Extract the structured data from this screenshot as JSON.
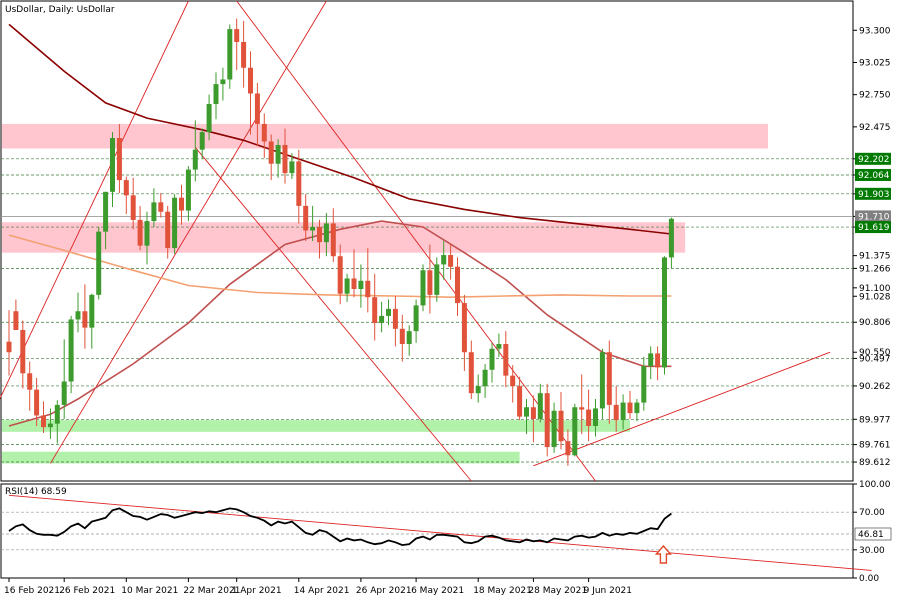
{
  "chart_data": [
    {
      "type": "candlestick",
      "title": "UsDollar, Daily:  UsDollar",
      "ylim": [
        89.45,
        93.55
      ],
      "y_ticks": [
        "93.300",
        "93.025",
        "92.750",
        "92.475",
        "92.202",
        "92.064",
        "91.903",
        "91.710",
        "91.619",
        "91.375",
        "91.266",
        "91.100",
        "91.028",
        "90.806",
        "90.550",
        "90.497",
        "90.262",
        "89.977",
        "89.761",
        "89.612"
      ],
      "y_tick_values": [
        93.3,
        93.025,
        92.75,
        92.475,
        92.202,
        92.064,
        91.903,
        91.71,
        91.619,
        91.375,
        91.266,
        91.1,
        91.028,
        90.806,
        90.55,
        90.497,
        90.262,
        89.977,
        89.761,
        89.612
      ],
      "badges": [
        {
          "label": "92.202",
          "value": 92.202,
          "color": "#007a00"
        },
        {
          "label": "92.064",
          "value": 92.064,
          "color": "#007a00"
        },
        {
          "label": "91.903",
          "value": 91.903,
          "color": "#007a00"
        },
        {
          "label": "91.710",
          "value": 91.71,
          "color": "#808080"
        },
        {
          "label": "91.619",
          "value": 91.619,
          "color": "#007a00"
        }
      ],
      "x_tick_labels": [
        "16 Feb 2021",
        "26 Feb 2021",
        "10 Mar 2021",
        "22 Mar 2021",
        "1 Apr 2021",
        "14 Apr 2021",
        "26 Apr 2021",
        "6 May 2021",
        "18 May 2021",
        "28 May 2021",
        "9 Jun 2021"
      ],
      "x_tick_index": [
        0,
        8,
        17,
        26,
        33,
        42,
        51,
        59,
        68,
        76,
        84
      ],
      "grid": false,
      "dashed_levels": [
        92.202,
        92.064,
        91.903,
        91.619,
        91.266,
        90.806,
        90.497,
        90.262,
        89.977,
        89.761,
        89.612
      ],
      "zones": [
        {
          "color": "#ffc0cb",
          "from": 92.29,
          "to": 92.5,
          "end_index": 110
        },
        {
          "color": "#ffc0cb",
          "from": 91.4,
          "to": 91.66,
          "end_index": 98
        },
        {
          "color": "#a8f0a0",
          "from": 89.87,
          "to": 89.97,
          "end_index": 90
        },
        {
          "color": "#a8f0a0",
          "from": 89.6,
          "to": 89.7,
          "end_index": 74
        }
      ],
      "candles": [
        [
          90.64,
          90.91,
          90.55,
          90.35
        ],
        [
          90.9,
          91.0,
          90.74,
          90.74
        ],
        [
          90.74,
          90.82,
          90.37,
          90.24
        ],
        [
          90.37,
          90.47,
          90.23,
          90.05
        ],
        [
          90.23,
          90.33,
          90.01,
          89.92
        ],
        [
          90.01,
          90.13,
          89.91,
          89.86
        ],
        [
          89.91,
          90.07,
          89.94,
          89.81
        ],
        [
          89.94,
          90.14,
          90.1,
          89.77
        ],
        [
          90.1,
          90.66,
          90.3,
          89.98
        ],
        [
          90.3,
          90.86,
          90.83,
          90.2
        ],
        [
          90.83,
          91.06,
          90.9,
          90.72
        ],
        [
          90.9,
          91.13,
          90.76,
          90.58
        ],
        [
          90.76,
          91.05,
          91.04,
          90.58
        ],
        [
          91.04,
          91.62,
          91.58,
          91.0
        ],
        [
          91.58,
          91.92,
          91.92,
          91.43
        ],
        [
          91.92,
          92.43,
          92.38,
          91.79
        ],
        [
          92.38,
          92.5,
          92.02,
          91.91
        ],
        [
          92.02,
          92.05,
          91.89,
          91.73
        ],
        [
          91.89,
          92.04,
          91.68,
          91.6
        ],
        [
          91.68,
          91.8,
          91.46,
          91.42
        ],
        [
          91.46,
          91.75,
          91.67,
          91.3
        ],
        [
          91.67,
          91.95,
          91.83,
          91.62
        ],
        [
          91.83,
          91.91,
          91.75,
          91.7
        ],
        [
          91.75,
          91.8,
          91.44,
          91.35
        ],
        [
          91.44,
          91.9,
          91.87,
          91.39
        ],
        [
          91.87,
          91.98,
          91.76,
          91.64
        ],
        [
          91.76,
          92.14,
          92.11,
          91.67
        ],
        [
          92.11,
          92.53,
          92.28,
          92.01
        ],
        [
          92.28,
          92.46,
          92.43,
          92.2
        ],
        [
          92.43,
          92.75,
          92.67,
          92.36
        ],
        [
          92.67,
          92.94,
          92.84,
          92.54
        ],
        [
          92.84,
          92.98,
          92.88,
          92.7
        ],
        [
          92.88,
          93.35,
          93.31,
          92.8
        ],
        [
          93.31,
          93.4,
          93.2,
          92.96
        ],
        [
          93.2,
          93.38,
          92.98,
          92.81
        ],
        [
          92.98,
          93.12,
          92.76,
          92.41
        ],
        [
          92.76,
          92.85,
          92.5,
          92.31
        ],
        [
          92.5,
          92.59,
          92.35,
          92.21
        ],
        [
          92.35,
          92.41,
          92.16,
          92.02
        ],
        [
          92.16,
          92.37,
          92.32,
          92.04
        ],
        [
          92.32,
          92.46,
          92.08,
          91.99
        ],
        [
          92.08,
          92.25,
          92.18,
          92.03
        ],
        [
          92.18,
          92.28,
          91.8,
          91.65
        ],
        [
          91.8,
          91.9,
          91.59,
          91.5
        ],
        [
          91.59,
          91.8,
          91.62,
          91.5
        ],
        [
          91.62,
          91.68,
          91.49,
          91.35
        ],
        [
          91.49,
          91.74,
          91.65,
          91.37
        ],
        [
          91.65,
          91.78,
          91.37,
          91.32
        ],
        [
          91.37,
          91.47,
          91.05,
          90.96
        ],
        [
          91.05,
          91.22,
          91.18,
          90.98
        ],
        [
          91.18,
          91.43,
          91.09,
          91.02
        ],
        [
          91.09,
          91.3,
          91.16,
          90.93
        ],
        [
          91.16,
          91.44,
          91.02,
          90.89
        ],
        [
          91.02,
          91.22,
          90.8,
          90.65
        ],
        [
          90.8,
          90.98,
          90.86,
          90.72
        ],
        [
          90.86,
          91.0,
          90.92,
          90.78
        ],
        [
          90.92,
          91.03,
          90.75,
          90.6
        ],
        [
          90.75,
          90.87,
          90.62,
          90.47
        ],
        [
          90.62,
          90.78,
          90.73,
          90.52
        ],
        [
          90.73,
          91.0,
          90.95,
          90.63
        ],
        [
          90.95,
          91.3,
          91.25,
          90.9
        ],
        [
          91.25,
          91.47,
          91.04,
          90.88
        ],
        [
          91.04,
          91.36,
          91.3,
          90.98
        ],
        [
          91.3,
          91.5,
          91.38,
          91.17
        ],
        [
          91.38,
          91.47,
          91.28,
          91.17
        ],
        [
          91.28,
          91.36,
          90.97,
          90.86
        ],
        [
          90.97,
          91.04,
          90.55,
          90.39
        ],
        [
          90.55,
          90.65,
          90.2,
          90.15
        ],
        [
          90.2,
          90.36,
          90.26,
          90.12
        ],
        [
          90.26,
          90.45,
          90.4,
          90.16
        ],
        [
          90.4,
          90.63,
          90.58,
          90.29
        ],
        [
          90.58,
          90.71,
          90.62,
          90.51
        ],
        [
          90.62,
          90.73,
          90.35,
          90.25
        ],
        [
          90.35,
          90.44,
          90.26,
          90.12
        ],
        [
          90.26,
          90.34,
          90.0,
          89.97
        ],
        [
          90.0,
          90.15,
          90.08,
          89.85
        ],
        [
          90.08,
          90.18,
          89.98,
          89.78
        ],
        [
          89.98,
          90.28,
          90.2,
          89.95
        ],
        [
          90.2,
          90.28,
          89.74,
          89.66
        ],
        [
          89.74,
          90.12,
          90.05,
          89.69
        ],
        [
          90.05,
          90.21,
          89.79,
          89.72
        ],
        [
          89.79,
          89.89,
          89.67,
          89.58
        ],
        [
          89.67,
          90.11,
          90.08,
          89.66
        ],
        [
          90.08,
          90.36,
          90.06,
          89.85
        ],
        [
          90.06,
          90.23,
          89.92,
          89.79
        ],
        [
          89.92,
          90.15,
          90.07,
          89.83
        ],
        [
          90.07,
          90.58,
          90.55,
          89.98
        ],
        [
          90.55,
          90.65,
          90.1,
          89.94
        ],
        [
          90.1,
          90.26,
          89.97,
          89.87
        ],
        [
          89.97,
          90.19,
          90.12,
          89.89
        ],
        [
          90.12,
          90.22,
          90.03,
          89.98
        ],
        [
          90.03,
          90.15,
          90.12,
          89.96
        ],
        [
          90.12,
          90.51,
          90.43,
          90.05
        ],
        [
          90.43,
          90.6,
          90.54,
          90.32
        ],
        [
          90.54,
          90.6,
          90.42,
          90.31
        ],
        [
          90.42,
          91.37,
          91.36,
          90.36
        ],
        [
          91.36,
          91.7,
          91.69,
          91.27
        ]
      ],
      "moving_averages": [
        {
          "color": "#8b0000",
          "points": [
            [
              0,
              93.35
            ],
            [
              8,
              92.95
            ],
            [
              14,
              92.68
            ],
            [
              20,
              92.55
            ],
            [
              28,
              92.45
            ],
            [
              34,
              92.36
            ],
            [
              42,
              92.2
            ],
            [
              50,
              92.04
            ],
            [
              58,
              91.86
            ],
            [
              66,
              91.77
            ],
            [
              74,
              91.7
            ],
            [
              82,
              91.65
            ],
            [
              90,
              91.6
            ],
            [
              96,
              91.56
            ]
          ]
        },
        {
          "color": "#c05050",
          "points": [
            [
              0,
              89.92
            ],
            [
              6,
              90.02
            ],
            [
              10,
              90.15
            ],
            [
              18,
              90.45
            ],
            [
              26,
              90.8
            ],
            [
              32,
              91.13
            ],
            [
              40,
              91.47
            ],
            [
              48,
              91.6
            ],
            [
              54,
              91.67
            ],
            [
              60,
              91.62
            ],
            [
              66,
              91.4
            ],
            [
              72,
              91.17
            ],
            [
              78,
              90.87
            ],
            [
              86,
              90.55
            ],
            [
              92,
              90.43
            ],
            [
              96,
              90.43
            ]
          ]
        },
        {
          "color": "#f4a070",
          "points": [
            [
              0,
              91.55
            ],
            [
              8,
              91.42
            ],
            [
              18,
              91.25
            ],
            [
              26,
              91.12
            ],
            [
              36,
              91.06
            ],
            [
              46,
              91.04
            ],
            [
              56,
              91.03
            ],
            [
              64,
              91.02
            ],
            [
              72,
              91.03
            ],
            [
              80,
              91.04
            ],
            [
              90,
              91.03
            ],
            [
              96,
              91.03
            ]
          ]
        }
      ],
      "trendlines": [
        {
          "from": [
            -4,
            89.82
          ],
          "to": [
            26,
            93.55
          ]
        },
        {
          "from": [
            6,
            89.6
          ],
          "to": [
            46,
            93.55
          ]
        },
        {
          "from": [
            33,
            93.55
          ],
          "to": [
            85,
            89.45
          ]
        },
        {
          "from": [
            27,
            92.3
          ],
          "to": [
            67,
            89.45
          ]
        },
        {
          "from": [
            76,
            89.58
          ],
          "to": [
            119,
            90.55
          ]
        }
      ],
      "current_price": 91.71
    },
    {
      "type": "line",
      "title": "RSI(14) 68.59",
      "ylim": [
        0,
        100
      ],
      "y_ticks": [
        "100.00",
        "70.00",
        "30.00",
        "0.00"
      ],
      "y_tick_values": [
        100,
        70,
        30,
        0
      ],
      "current_badge": {
        "label": "46.81",
        "value": 46.81
      },
      "dashed_levels": [
        70,
        46.81,
        30
      ],
      "series": [
        {
          "values": [
            50,
            55,
            57,
            51,
            47,
            46,
            46,
            45,
            49,
            55,
            58,
            53,
            60,
            62,
            64,
            72,
            74,
            70,
            66,
            65,
            62,
            65,
            68,
            67,
            64,
            66,
            68,
            70,
            69,
            71,
            70,
            72,
            74,
            73,
            70,
            66,
            64,
            61,
            56,
            60,
            58,
            60,
            54,
            48,
            46,
            51,
            49,
            44,
            39,
            42,
            40,
            41,
            38,
            36,
            37,
            40,
            38,
            35,
            36,
            42,
            44,
            41,
            46,
            46,
            45,
            44,
            38,
            37,
            39,
            44,
            45,
            43,
            40,
            39,
            38,
            41,
            39,
            40,
            38,
            42,
            41,
            40,
            44,
            45,
            43,
            44,
            48,
            45,
            47,
            46,
            48,
            47,
            50,
            53,
            52,
            63,
            68.59
          ]
        }
      ],
      "trendline": {
        "from": [
          0,
          88
        ],
        "to": [
          125,
          8
        ]
      },
      "arrow_index": 96
    }
  ]
}
